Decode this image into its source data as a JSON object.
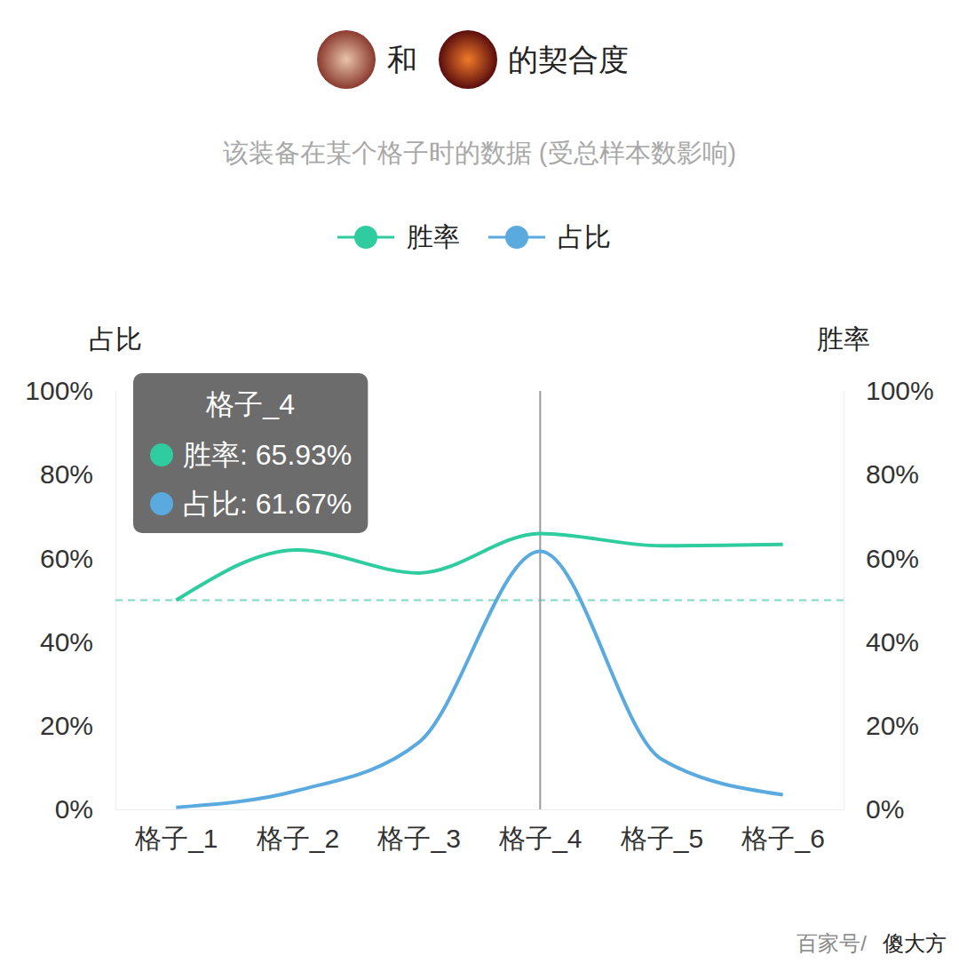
{
  "chart_data": {
    "type": "line",
    "title_parts": [
      "和",
      "的契合度"
    ],
    "subtitle": "该装备在某个格子时的数据 (受总样本数影响)",
    "categories": [
      "格子_1",
      "格子_2",
      "格子_3",
      "格子_4",
      "格子_5",
      "格子_6"
    ],
    "series": [
      {
        "name": "胜率",
        "color": "#2ecc9e",
        "axis": "y2",
        "line_style": "solid",
        "values": [
          50,
          62,
          56.5,
          65.93,
          63,
          63.3
        ]
      },
      {
        "name": "占比",
        "color": "#5aaae0",
        "line_style": "solid",
        "values": [
          0.5,
          4.5,
          16,
          61.67,
          12,
          3.5
        ]
      }
    ],
    "ylabel": "占比",
    "y2label": "胜率",
    "ylim": [
      0,
      100
    ],
    "yticks": [
      {
        "value": 0,
        "label": "0%"
      },
      {
        "value": 20,
        "label": "20%"
      },
      {
        "value": 40,
        "label": "40%"
      },
      {
        "value": 60,
        "label": "60%"
      },
      {
        "value": 80,
        "label": "80%"
      },
      {
        "value": 100,
        "label": "100%"
      }
    ],
    "y2lim": [
      0,
      100
    ],
    "y2ticks": [
      {
        "value": 0,
        "label": "0%"
      },
      {
        "value": 20,
        "label": "20%"
      },
      {
        "value": 40,
        "label": "40%"
      },
      {
        "value": 60,
        "label": "60%"
      },
      {
        "value": 80,
        "label": "80%"
      },
      {
        "value": 100,
        "label": "100%"
      }
    ],
    "hline": {
      "value": 50,
      "axis": "y2",
      "color": "#7fd8bf",
      "line_style": "dashed"
    },
    "tooltip": {
      "title": "格子_4",
      "rows": [
        "胜率: 65.93%",
        "占比: 61.67%"
      ]
    },
    "watermark": [
      "百家号/",
      "傻大方"
    ],
    "legend": "top",
    "marker": "none",
    "grid": false
  }
}
